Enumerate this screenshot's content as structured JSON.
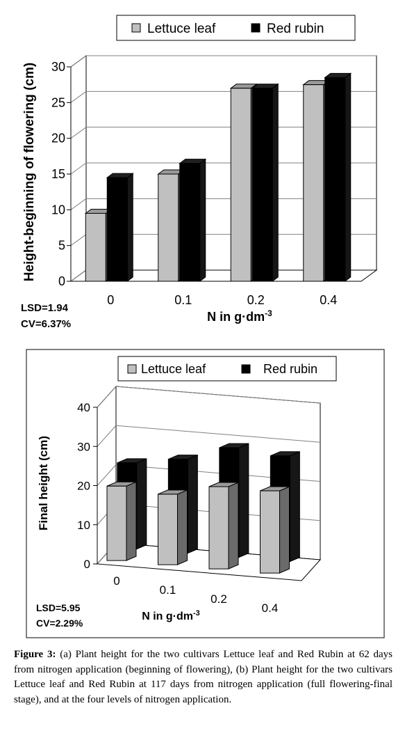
{
  "chart_data": [
    {
      "type": "bar",
      "categories": [
        "0",
        "0.1",
        "0.2",
        "0.4"
      ],
      "series": [
        {
          "name": "Lettuce leaf",
          "values": [
            9.5,
            15,
            27,
            27.5
          ],
          "color": "#c0c0c0"
        },
        {
          "name": "Red rubin",
          "values": [
            14.5,
            16.5,
            27,
            28.5
          ],
          "color": "#000000"
        }
      ],
      "ylabel": "Height-beginning of flowering (cm)",
      "xlabel": "N in g·dm",
      "xlabel_sup": "-3",
      "yticks": [
        0,
        5,
        10,
        15,
        20,
        25,
        30
      ],
      "ylim": [
        0,
        30
      ],
      "grid": true,
      "legend": "top",
      "stats": [
        "LSD=1.94",
        "CV=6.37%"
      ]
    },
    {
      "type": "bar",
      "categories": [
        "0",
        "0.1",
        "0.2",
        "0.4"
      ],
      "series": [
        {
          "name": "Lettuce leaf",
          "values": [
            19,
            18,
            21,
            21
          ],
          "color": "#c0c0c0"
        },
        {
          "name": "Red rubin",
          "values": [
            22,
            24,
            28,
            27
          ],
          "color": "#000000"
        }
      ],
      "ylabel": "Final height (cm)",
      "xlabel": "N in g·dm",
      "xlabel_sup": "-3",
      "yticks": [
        0,
        10,
        20,
        30,
        40
      ],
      "ylim": [
        0,
        40
      ],
      "grid": true,
      "legend": "top",
      "stats": [
        "LSD=5.95",
        "CV=2.29%"
      ]
    }
  ],
  "caption": {
    "label": "Figure 3:",
    "text": " (a) Plant height for the two cultivars Lettuce leaf and Red Rubin at 62 days from nitrogen application (beginning of flowering), (b) Plant height for the two cultivars Lettuce leaf and Red Rubin at 117 days from nitrogen application (full flowering-final stage), and at the four levels of nitrogen application."
  }
}
